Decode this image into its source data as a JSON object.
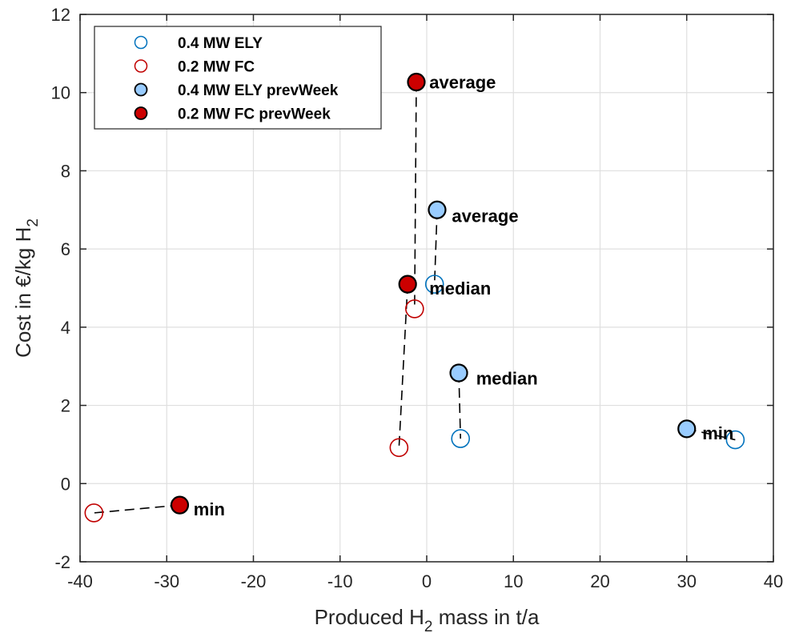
{
  "chart_data": {
    "type": "scatter",
    "xlabel": "Produced H",
    "xlabel_sub": "2",
    "xlabel_rest": " mass in t/a",
    "ylabel": "Cost in €/kg H",
    "ylabel_sub": "2",
    "xlim": [
      -40,
      40
    ],
    "ylim": [
      -2,
      12
    ],
    "xticks": [
      -40,
      -30,
      -20,
      -10,
      0,
      10,
      20,
      30,
      40
    ],
    "yticks": [
      -2,
      0,
      2,
      4,
      6,
      8,
      10,
      12
    ],
    "grid": true,
    "legend_position": "top-left",
    "series": [
      {
        "name": "0.4 MW ELY",
        "marker": "open-circle",
        "edge_color": "#0072BD",
        "fill_color": "none",
        "points": [
          {
            "label": "average",
            "x": 0.9,
            "y": 5.1
          },
          {
            "label": "median",
            "x": 3.9,
            "y": 1.15
          },
          {
            "label": "min",
            "x": 35.6,
            "y": 1.12
          }
        ]
      },
      {
        "name": "0.2 MW FC",
        "marker": "open-circle",
        "edge_color": "#C00000",
        "fill_color": "none",
        "points": [
          {
            "label": "average",
            "x": -1.4,
            "y": 4.47
          },
          {
            "label": "median",
            "x": -3.2,
            "y": 0.92
          },
          {
            "label": "min",
            "x": -38.4,
            "y": -0.75
          }
        ]
      },
      {
        "name": "0.4 MW ELY prevWeek",
        "marker": "filled-circle",
        "edge_color": "#000000",
        "fill_color": "#99CCFF",
        "points": [
          {
            "label": "average",
            "x": 1.2,
            "y": 7.0
          },
          {
            "label": "median",
            "x": 3.7,
            "y": 2.83
          },
          {
            "label": "min",
            "x": 30.0,
            "y": 1.4
          }
        ]
      },
      {
        "name": "0.2 MW FC prevWeek",
        "marker": "filled-circle",
        "edge_color": "#000000",
        "fill_color": "#CC0000",
        "points": [
          {
            "label": "average",
            "x": -1.2,
            "y": 10.27
          },
          {
            "label": "median",
            "x": -2.2,
            "y": 5.1
          },
          {
            "label": "min",
            "x": -28.5,
            "y": -0.55
          }
        ]
      }
    ],
    "connectors": [
      {
        "from": [
          -1.2,
          10.27
        ],
        "to": [
          -1.4,
          4.47
        ]
      },
      {
        "from": [
          1.2,
          7.0
        ],
        "to": [
          0.9,
          5.1
        ]
      },
      {
        "from": [
          -2.2,
          5.1
        ],
        "to": [
          -3.2,
          0.92
        ]
      },
      {
        "from": [
          3.7,
          2.83
        ],
        "to": [
          3.9,
          1.15
        ]
      },
      {
        "from": [
          30.0,
          1.4
        ],
        "to": [
          35.6,
          1.12
        ]
      },
      {
        "from": [
          -28.5,
          -0.55
        ],
        "to": [
          -38.4,
          -0.75
        ]
      }
    ],
    "annotations": [
      {
        "text": "average",
        "x": 0.3,
        "y": 10.27
      },
      {
        "text": "average",
        "x": 2.9,
        "y": 6.85
      },
      {
        "text": "median",
        "x": 0.3,
        "y": 5.0
      },
      {
        "text": "median",
        "x": 5.7,
        "y": 2.7
      },
      {
        "text": "min",
        "x": 31.8,
        "y": 1.3
      },
      {
        "text": "min",
        "x": -26.9,
        "y": -0.65
      }
    ]
  }
}
